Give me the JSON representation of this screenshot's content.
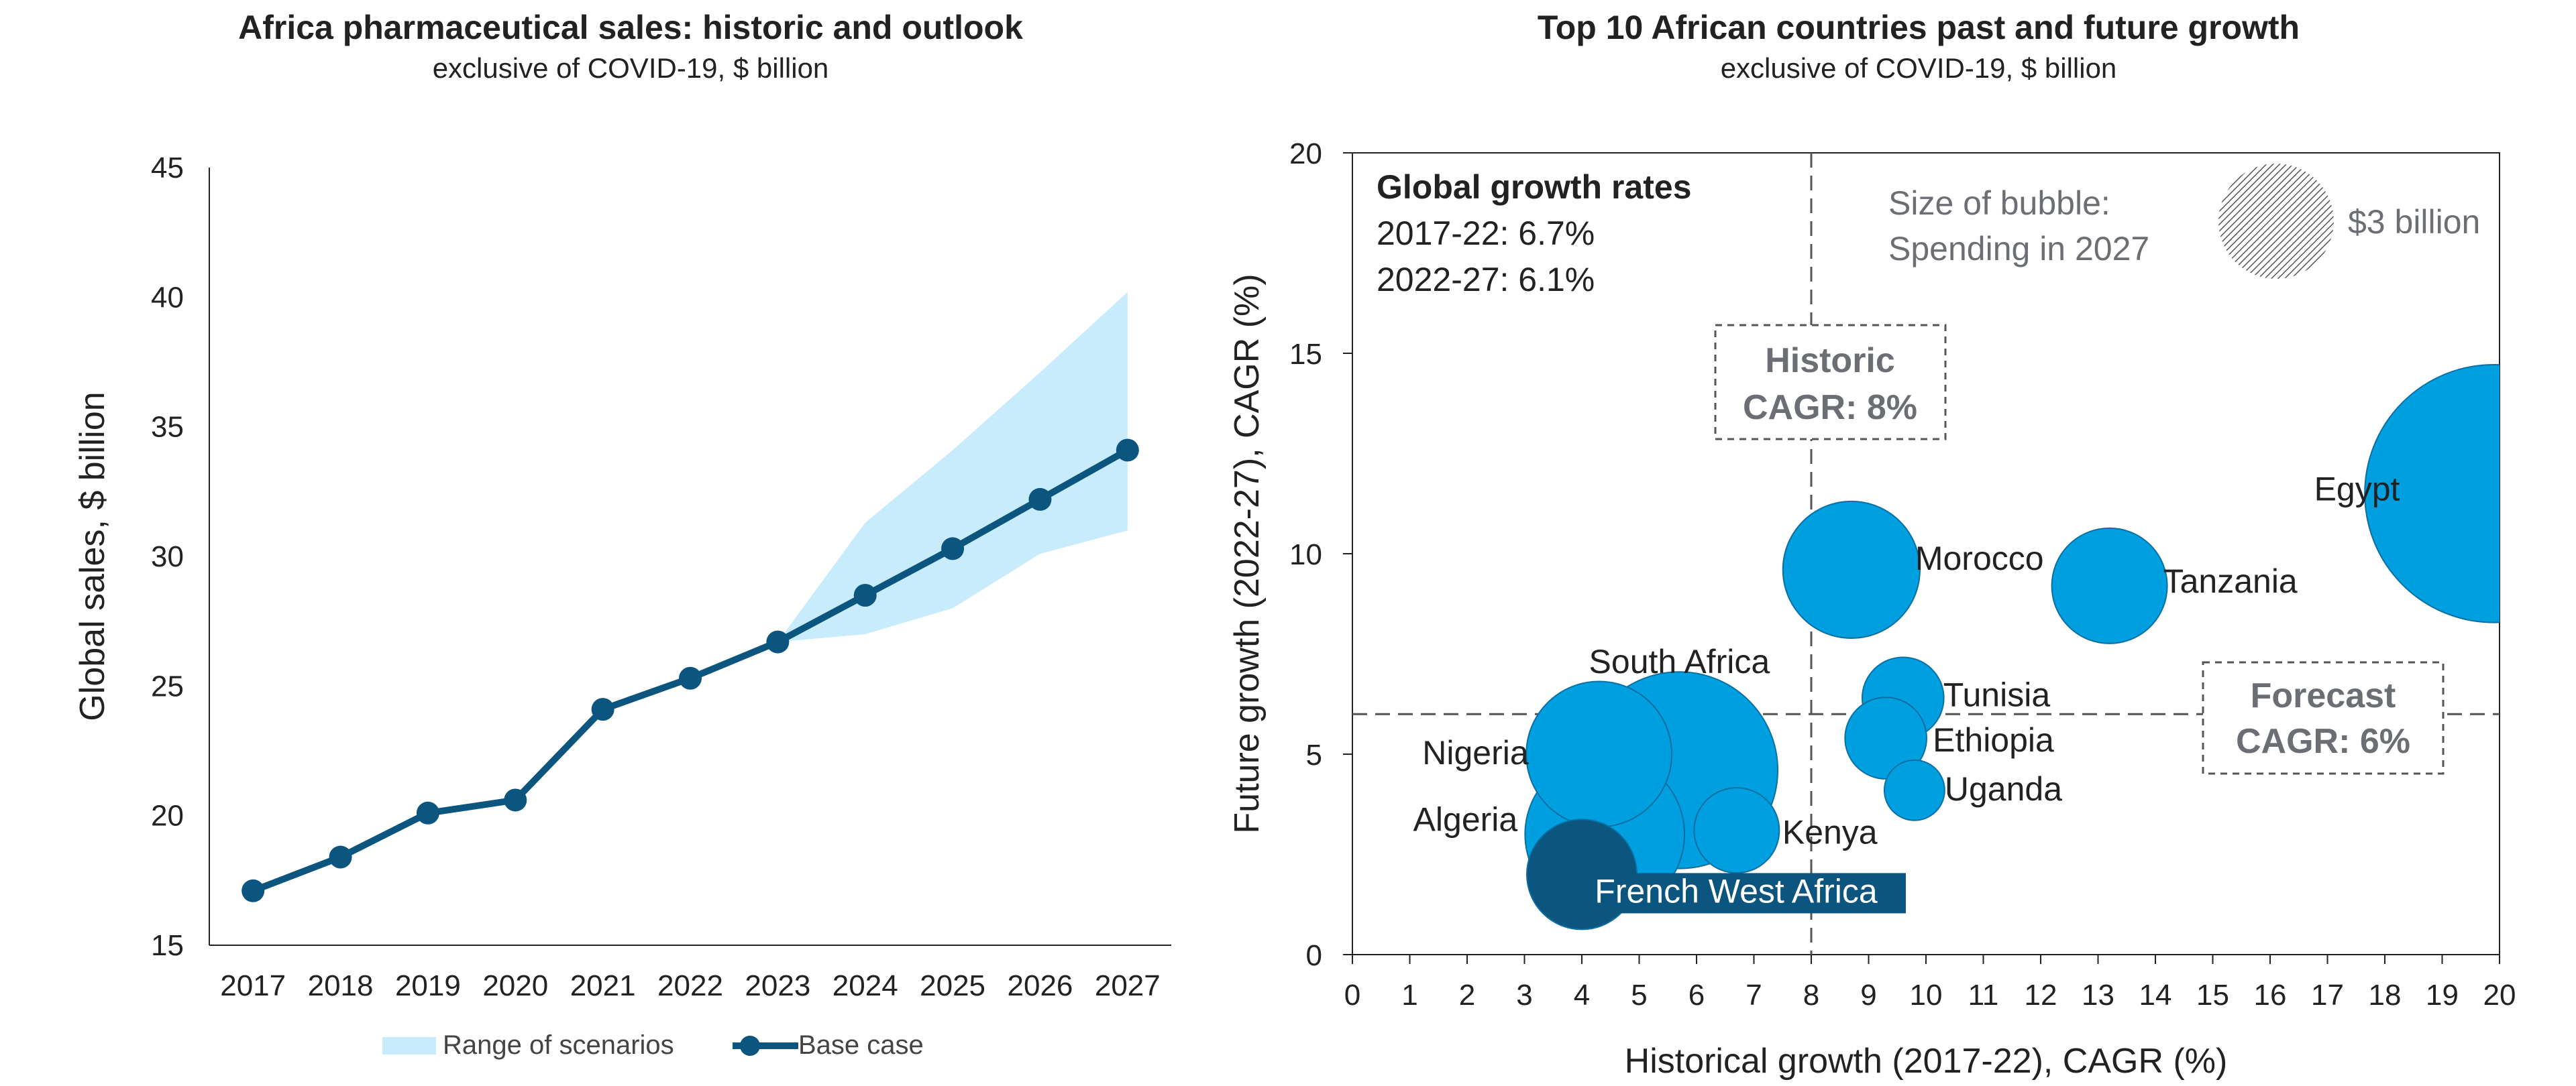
{
  "left_chart": {
    "title": "Africa pharmaceutical sales: historic and outlook",
    "subtitle": "exclusive of COVID-19, $ billion",
    "chart_data": {
      "type": "line",
      "x": [
        "2017",
        "2018",
        "2019",
        "2020",
        "2021",
        "2022",
        "2023",
        "2024",
        "2025",
        "2026",
        "2027"
      ],
      "ylabel": "Global sales, $ billion",
      "xlabel": "",
      "ylim": [
        15,
        45
      ],
      "yticks": [
        15,
        20,
        25,
        30,
        35,
        40,
        45
      ],
      "series": [
        {
          "name": "Base case",
          "values": [
            17.1,
            18.4,
            20.1,
            20.6,
            24.1,
            25.3,
            26.7,
            28.5,
            30.3,
            32.2,
            34.1
          ],
          "color": "#0b557f"
        }
      ],
      "range": {
        "name": "Range of scenarios",
        "x": [
          "2023",
          "2024",
          "2025",
          "2026",
          "2027"
        ],
        "upper": [
          26.7,
          31.3,
          34.1,
          37.1,
          40.2
        ],
        "lower": [
          26.7,
          27.0,
          28.0,
          30.1,
          31.0
        ],
        "color": "#c8ecfb"
      },
      "legend": [
        "Range of scenarios",
        "Base case"
      ],
      "legend_position": "bottom",
      "grid": false
    }
  },
  "right_chart": {
    "title": "Top 10 African countries past and future growth",
    "subtitle": "exclusive of COVID-19, $ billion",
    "chart_data": {
      "type": "scatter",
      "xlabel": "Historical growth (2017-22), CAGR (%)",
      "ylabel": "Future growth (2022-27), CAGR (%)",
      "xlim": [
        0,
        20
      ],
      "ylim": [
        0,
        20
      ],
      "xticks": [
        0,
        1,
        2,
        3,
        4,
        5,
        6,
        7,
        8,
        9,
        10,
        11,
        12,
        13,
        14,
        15,
        16,
        17,
        18,
        19,
        20
      ],
      "yticks": [
        0,
        5,
        10,
        15,
        20
      ],
      "points": [
        {
          "label": "Egypt",
          "x": 19.9,
          "y": 11.5,
          "size": 5.5,
          "color": "#009fdf"
        },
        {
          "label": "Morocco",
          "x": 8.7,
          "y": 9.6,
          "size": 1.55,
          "color": "#009fdf"
        },
        {
          "label": "Tanzania",
          "x": 13.2,
          "y": 9.2,
          "size": 1.1,
          "color": "#009fdf"
        },
        {
          "label": "South Africa",
          "x": 5.7,
          "y": 4.6,
          "size": 3.2,
          "color": "#009fdf"
        },
        {
          "label": "Nigeria",
          "x": 4.3,
          "y": 5.0,
          "size": 1.75,
          "color": "#009fdf"
        },
        {
          "label": "Tunisia",
          "x": 9.6,
          "y": 6.4,
          "size": 0.55,
          "color": "#009fdf"
        },
        {
          "label": "Ethiopia",
          "x": 9.3,
          "y": 5.4,
          "size": 0.55,
          "color": "#009fdf"
        },
        {
          "label": "Uganda",
          "x": 9.8,
          "y": 4.1,
          "size": 0.3,
          "color": "#009fdf"
        },
        {
          "label": "Kenya",
          "x": 6.7,
          "y": 3.1,
          "size": 0.6,
          "color": "#009fdf"
        },
        {
          "label": "Algeria",
          "x": 4.4,
          "y": 3.0,
          "size": 2.1,
          "color": "#009fdf"
        },
        {
          "label": "French West Africa",
          "x": 4.0,
          "y": 2.0,
          "size": 1.0,
          "color": "#0b557f"
        }
      ],
      "reference_lines": {
        "historic_cagr": 8,
        "forecast_cagr": 6
      },
      "annotations": {
        "global_title": "Global growth rates",
        "global_line1": "2017-22: 6.7%",
        "global_line2": "2022-27: 6.1%",
        "size_note_1": "Size of bubble:",
        "size_note_2": "Spending in 2027",
        "size_legend": "$3 billion",
        "historic_1": "Historic",
        "historic_2": "CAGR: 8%",
        "forecast_1": "Forecast",
        "forecast_2": "CAGR: 6%"
      },
      "grid": false
    }
  }
}
